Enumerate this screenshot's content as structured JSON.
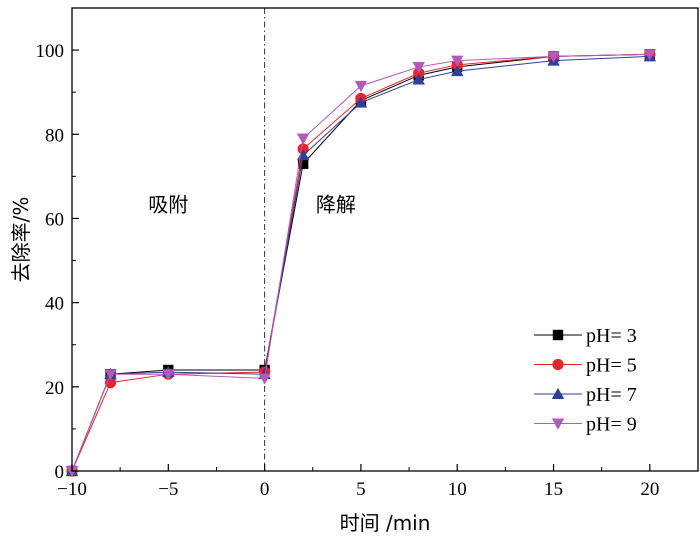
{
  "chart_data": {
    "type": "line",
    "xlabel": "时间 /min",
    "ylabel": "去除率/%",
    "xlim": [
      -10,
      22.5
    ],
    "ylim": [
      0,
      110
    ],
    "xticks": [
      -10,
      -5,
      0,
      5,
      10,
      15,
      20
    ],
    "xtick_labels": [
      "−10",
      "−5",
      "0",
      "5",
      "10",
      "15",
      "20"
    ],
    "yticks": [
      0,
      20,
      40,
      60,
      80,
      100
    ],
    "ytick_labels": [
      "0",
      "20",
      "40",
      "60",
      "80",
      "100"
    ],
    "vline_x": 0,
    "annotations": [
      {
        "text": "吸附",
        "x": -5,
        "y": 63
      },
      {
        "text": "降解",
        "x": 3.7,
        "y": 63
      }
    ],
    "legend_position": "bottom-right",
    "x": [
      -10,
      -8,
      -5,
      0,
      2,
      5,
      8,
      10,
      15,
      20
    ],
    "series": [
      {
        "name": "pH= 3",
        "color": "#000000",
        "marker": "square",
        "values": [
          0,
          23,
          24,
          24,
          73,
          88,
          94,
          96,
          98.5,
          99
        ]
      },
      {
        "name": "pH= 5",
        "color": "#e8262a",
        "marker": "circle",
        "values": [
          0,
          21,
          23,
          23.5,
          76.5,
          88.5,
          94.5,
          96.5,
          98.5,
          99
        ]
      },
      {
        "name": "pH= 7",
        "color": "#2e3f9c",
        "marker": "triangle-up",
        "values": [
          0,
          23,
          23.5,
          23,
          75,
          87.5,
          93,
          95,
          97.5,
          98.5
        ]
      },
      {
        "name": "pH= 9",
        "color": "#b35ab8",
        "marker": "triangle-down",
        "values": [
          0,
          23,
          23,
          22,
          79,
          91.5,
          96,
          97.5,
          98.5,
          99
        ]
      }
    ]
  }
}
